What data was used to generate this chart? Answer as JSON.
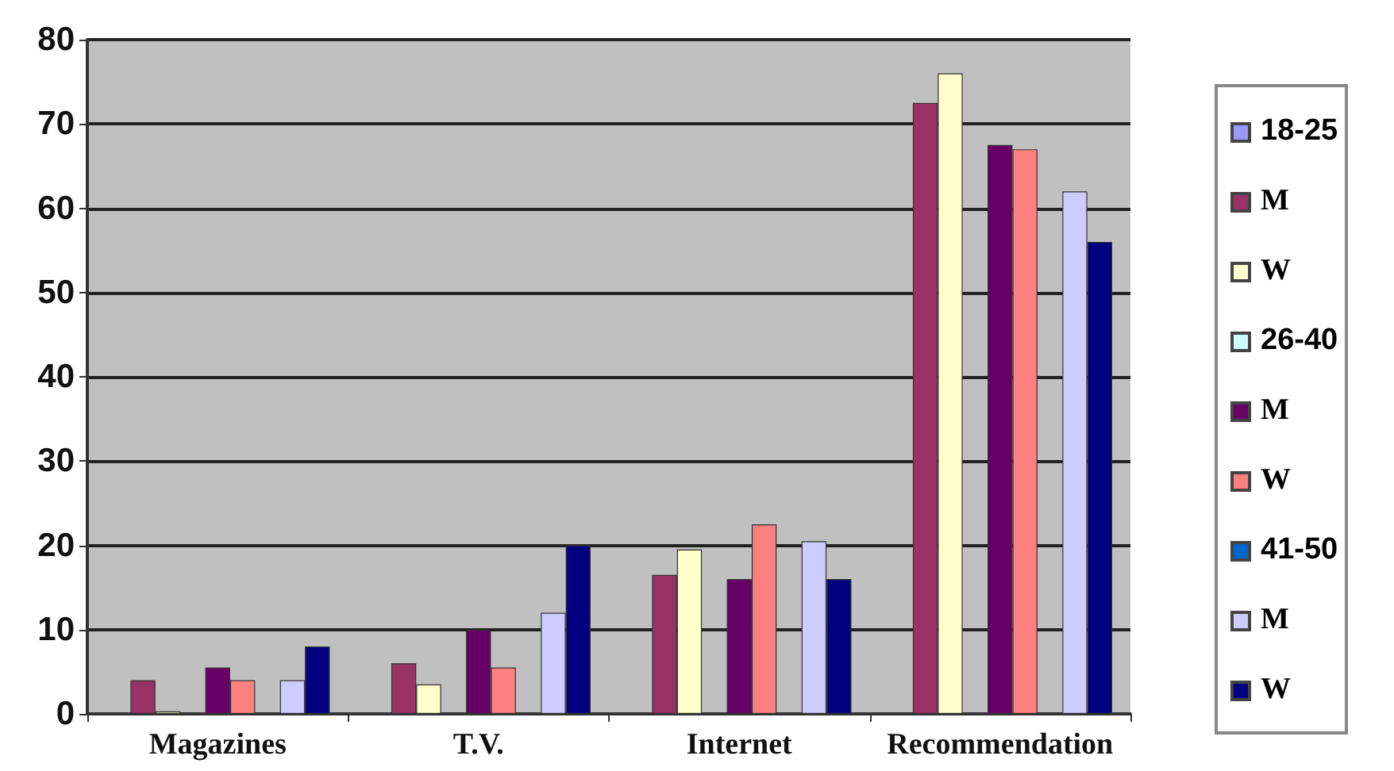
{
  "chart_data": {
    "type": "bar",
    "categories": [
      "Magazines",
      "T.V.",
      "Internet",
      "Recommendation"
    ],
    "series": [
      {
        "name": "18-25",
        "color": "#9999ff",
        "values": [
          null,
          null,
          null,
          null
        ]
      },
      {
        "name": "M",
        "color": "#993366",
        "values": [
          4,
          6,
          16.5,
          72.5
        ]
      },
      {
        "name": "W",
        "color": "#ffffcc",
        "values": [
          0.3,
          3.5,
          19.5,
          76
        ]
      },
      {
        "name": "26-40",
        "color": "#ccffff",
        "values": [
          null,
          null,
          null,
          null
        ]
      },
      {
        "name": "M",
        "color": "#660066",
        "values": [
          5.5,
          10,
          16,
          67.5
        ]
      },
      {
        "name": "W",
        "color": "#ff8080",
        "values": [
          4,
          5.5,
          22.5,
          67
        ]
      },
      {
        "name": "41-50",
        "color": "#0066cc",
        "values": [
          null,
          null,
          null,
          null
        ]
      },
      {
        "name": "M",
        "color": "#ccccff",
        "values": [
          4,
          12,
          20.5,
          62
        ]
      },
      {
        "name": "W",
        "color": "#000080",
        "values": [
          8,
          20,
          16,
          56
        ]
      }
    ],
    "ylim": [
      0,
      80
    ],
    "yticks": [
      0,
      10,
      20,
      30,
      40,
      50,
      60,
      70,
      80
    ],
    "grid": "y",
    "legend": "right"
  }
}
